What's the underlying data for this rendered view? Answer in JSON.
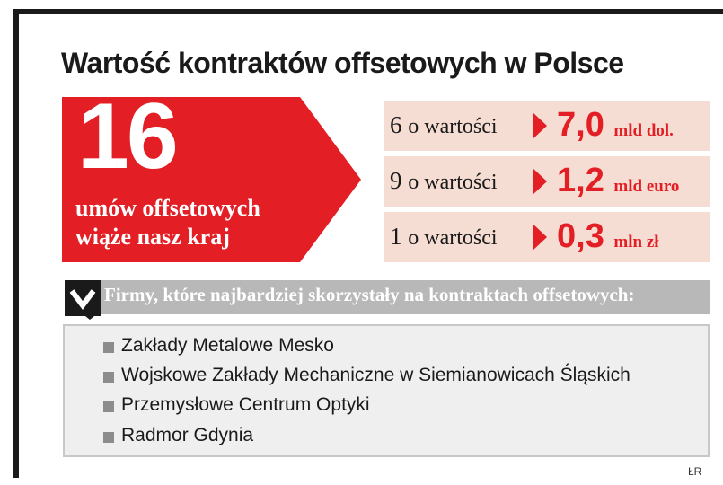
{
  "title": "Wartość kontraktów offsetowych w Polsce",
  "headline": {
    "number": "16",
    "line1": "umów offsetowych",
    "line2": "wiąże nasz kraj"
  },
  "contracts": [
    {
      "count": "6",
      "label": "o wartości",
      "value": "7,0",
      "unit": "mld dol."
    },
    {
      "count": "9",
      "label": "o wartości",
      "value": "1,2",
      "unit": "mld euro"
    },
    {
      "count": "1",
      "label": "o wartości",
      "value": "0,3",
      "unit": "mln zł"
    }
  ],
  "companies_header": "Firmy, które najbardziej skorzystały na kontraktach offsetowych:",
  "companies": [
    "Zakłady Metalowe Mesko",
    "Wojskowe Zakłady Mechaniczne w Siemianowicach Śląskich",
    "Przemysłowe Centrum Optyki",
    "Radmor Gdynia"
  ],
  "credit": "ŁR",
  "colors": {
    "accent": "#e31e24",
    "row_bg": "#f6ddd4",
    "header_bar": "#b8b8b8",
    "list_bg": "#efefef"
  },
  "icons": {
    "header_marker": "chevron-down-icon",
    "list_bullet": "square-bullet-icon",
    "value_marker": "triangle-right-icon"
  }
}
